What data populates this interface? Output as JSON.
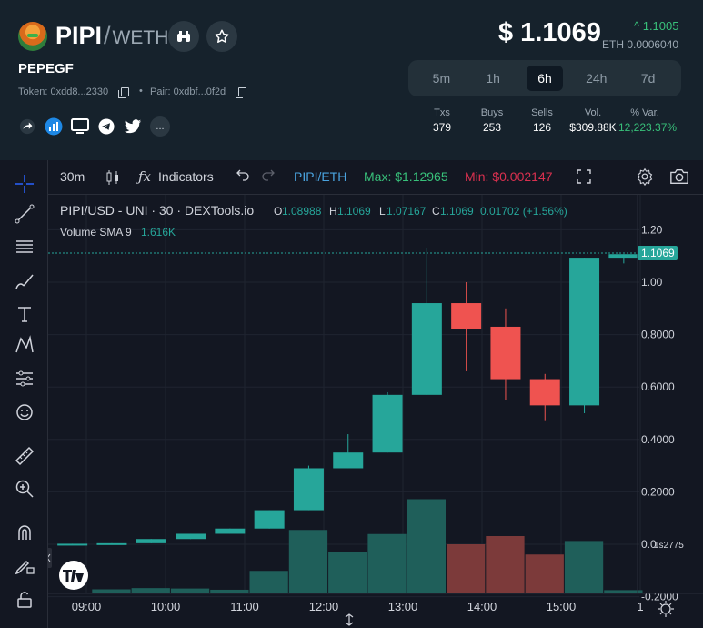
{
  "header": {
    "base": "PIPI",
    "slash": "/",
    "quote": "WETH",
    "token_name": "PEPEGF",
    "token_addr": "Token: 0xdd8...2330",
    "pair_addr": "Pair: 0xdbf...0f2d",
    "separator": "•",
    "more_label": "...",
    "price": "$ 1.1069",
    "change": "^ 1.1005",
    "eth_price": "ETH 0.0006040",
    "timeframes": [
      {
        "label": "5m",
        "active": false
      },
      {
        "label": "1h",
        "active": false
      },
      {
        "label": "6h",
        "active": true
      },
      {
        "label": "24h",
        "active": false
      },
      {
        "label": "7d",
        "active": false
      }
    ],
    "stats": [
      {
        "label": "Txs",
        "value": "379"
      },
      {
        "label": "Buys",
        "value": "253"
      },
      {
        "label": "Sells",
        "value": "126"
      },
      {
        "label": "Vol.",
        "value": "$309.88K"
      },
      {
        "label": "% Var.",
        "value": "12,223.37%"
      }
    ]
  },
  "toolbar": {
    "interval": "30m",
    "indicators": "Indicators",
    "symbol": "PIPI/ETH",
    "max": "Max: $1.12965",
    "min": "Min: $0.002147"
  },
  "legend": {
    "title": "PIPI/USD - UNI · 30 · DEXTools.io",
    "o_label": "O",
    "o": "1.08988",
    "h_label": "H",
    "h": "1.1069",
    "l_label": "L",
    "l": "1.07167",
    "c_label": "C",
    "c": "1.1069",
    "chg": "0.01702 (+1.56%)",
    "vol_label": "Volume SMA 9",
    "vol": "1.616K"
  },
  "colors": {
    "up": "#26a69a",
    "down": "#ef5350",
    "up_vol": "#1f5f5a",
    "down_vol": "#7c3a3a",
    "accent": "#2962ff",
    "green_text": "#38c07a",
    "red_text": "#d9304f",
    "symbol_text": "#4aa3df"
  },
  "chart_data": {
    "type": "candlestick",
    "y_ticks": [
      "1.20",
      "1.00",
      "0.8000",
      "0.6000",
      "0.4000",
      "0.2000",
      "0.0",
      "-0.2000"
    ],
    "x_ticks": [
      "09:00",
      "10:00",
      "11:00",
      "12:00",
      "13:00",
      "14:00",
      "15:00",
      "1"
    ],
    "last_price_label": "1.1069",
    "small_price_label": "1s2775",
    "ylim": [
      -0.2,
      1.25
    ],
    "candles": [
      {
        "o": 0.0,
        "h": 0.002,
        "l": 0.0,
        "c": 0.002
      },
      {
        "o": 0.002,
        "h": 0.004,
        "l": 0.001,
        "c": 0.004
      },
      {
        "o": 0.004,
        "h": 0.02,
        "l": 0.004,
        "c": 0.02
      },
      {
        "o": 0.02,
        "h": 0.04,
        "l": 0.02,
        "c": 0.04
      },
      {
        "o": 0.04,
        "h": 0.06,
        "l": 0.04,
        "c": 0.06
      },
      {
        "o": 0.06,
        "h": 0.13,
        "l": 0.06,
        "c": 0.13
      },
      {
        "o": 0.13,
        "h": 0.3,
        "l": 0.13,
        "c": 0.29
      },
      {
        "o": 0.29,
        "h": 0.42,
        "l": 0.29,
        "c": 0.35
      },
      {
        "o": 0.35,
        "h": 0.58,
        "l": 0.35,
        "c": 0.57
      },
      {
        "o": 0.57,
        "h": 1.12965,
        "l": 0.57,
        "c": 0.92
      },
      {
        "o": 0.92,
        "h": 1.0,
        "l": 0.66,
        "c": 0.82
      },
      {
        "o": 0.83,
        "h": 0.9,
        "l": 0.55,
        "c": 0.63
      },
      {
        "o": 0.63,
        "h": 0.65,
        "l": 0.47,
        "c": 0.53
      },
      {
        "o": 0.53,
        "h": 1.09,
        "l": 0.5,
        "c": 1.09
      },
      {
        "o": 1.08988,
        "h": 1.1069,
        "l": 1.07167,
        "c": 1.1069
      }
    ],
    "volumes": [
      0.02,
      0.1,
      0.13,
      0.12,
      0.09,
      0.55,
      1.55,
      1.0,
      1.45,
      2.3,
      1.2,
      1.4,
      0.95,
      1.28,
      0.08
    ],
    "vol_max": 2.4
  }
}
